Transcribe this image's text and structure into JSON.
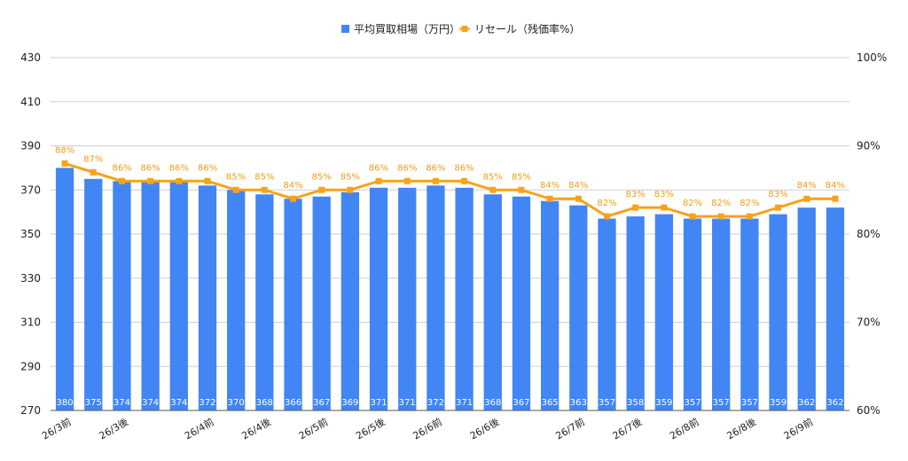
{
  "colors": {
    "bar": "#4285f4",
    "line": "#f7a21b",
    "line_label": "#f39c12",
    "grid": "#cfcfcf"
  },
  "chart_data": {
    "type": "bar",
    "title": "",
    "legend": {
      "position": "top",
      "bar_label": "平均買取相場（万円）",
      "line_label": "リセール（残価率%）"
    },
    "grid": true,
    "y_left": {
      "range": [
        270,
        430
      ],
      "ticks": [
        "270",
        "290",
        "310",
        "330",
        "350",
        "370",
        "390",
        "410",
        "430"
      ]
    },
    "y_right": {
      "range": [
        60,
        100
      ],
      "ticks": [
        "60%",
        "70%",
        "80%",
        "90%",
        "100%"
      ]
    },
    "x_tick_labels": [
      {
        "index": 0,
        "text": "26/3前"
      },
      {
        "index": 2,
        "text": "26/3後"
      },
      {
        "index": 5,
        "text": "26/4前"
      },
      {
        "index": 7,
        "text": "26/4後"
      },
      {
        "index": 9,
        "text": "26/5前"
      },
      {
        "index": 11,
        "text": "26/5後"
      },
      {
        "index": 13,
        "text": "26/6前"
      },
      {
        "index": 15,
        "text": "26/6後"
      },
      {
        "index": 18,
        "text": "26/7前"
      },
      {
        "index": 20,
        "text": "26/7後"
      },
      {
        "index": 22,
        "text": "26/8前"
      },
      {
        "index": 24,
        "text": "26/8後"
      },
      {
        "index": 26,
        "text": "26/9前"
      }
    ],
    "series": [
      {
        "name": "平均買取相場（万円）",
        "type": "bar",
        "axis": "left",
        "values": [
          380,
          375,
          374,
          374,
          374,
          372,
          370,
          368,
          366,
          367,
          369,
          371,
          371,
          372,
          371,
          368,
          367,
          365,
          363,
          357,
          358,
          359,
          357,
          357,
          357,
          359,
          362,
          362
        ]
      },
      {
        "name": "リセール（残価率%）",
        "type": "line",
        "axis": "right",
        "values": [
          88,
          87,
          86,
          86,
          86,
          86,
          85,
          85,
          84,
          85,
          85,
          86,
          86,
          86,
          86,
          85,
          85,
          84,
          84,
          82,
          83,
          83,
          82,
          82,
          82,
          83,
          84,
          84
        ]
      }
    ]
  }
}
